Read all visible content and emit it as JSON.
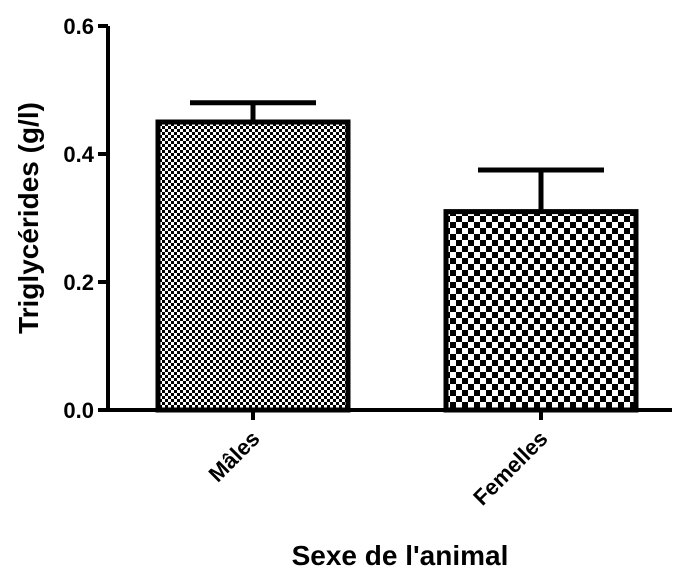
{
  "chart_data": {
    "type": "bar",
    "title": "",
    "xlabel": "Sexe de l'animal",
    "ylabel": "Triglycérides (g/l)",
    "categories": [
      "Mâles",
      "Femelles"
    ],
    "values": [
      0.45,
      0.31
    ],
    "error_upper": [
      0.03,
      0.065
    ],
    "ylim": [
      0,
      0.6
    ],
    "yticks": [
      "0.0",
      "0.2",
      "0.4",
      "0.6"
    ],
    "grid": false,
    "legend": "none",
    "patterns": [
      "fine-checker",
      "coarse-checker"
    ],
    "bar_fill_colors": [
      "#000000",
      "#ffffff"
    ]
  }
}
